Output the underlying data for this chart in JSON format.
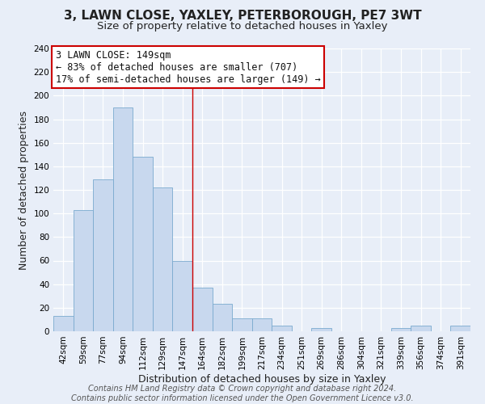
{
  "title": "3, LAWN CLOSE, YAXLEY, PETERBOROUGH, PE7 3WT",
  "subtitle": "Size of property relative to detached houses in Yaxley",
  "xlabel": "Distribution of detached houses by size in Yaxley",
  "ylabel": "Number of detached properties",
  "bar_labels": [
    "42sqm",
    "59sqm",
    "77sqm",
    "94sqm",
    "112sqm",
    "129sqm",
    "147sqm",
    "164sqm",
    "182sqm",
    "199sqm",
    "217sqm",
    "234sqm",
    "251sqm",
    "269sqm",
    "286sqm",
    "304sqm",
    "321sqm",
    "339sqm",
    "356sqm",
    "374sqm",
    "391sqm"
  ],
  "bar_values": [
    13,
    103,
    129,
    190,
    148,
    122,
    60,
    37,
    23,
    11,
    11,
    5,
    0,
    3,
    0,
    0,
    0,
    3,
    5,
    0,
    5
  ],
  "bar_color": "#c8d8ee",
  "bar_edge_color": "#7aaacf",
  "highlight_index": 6,
  "highlight_line_color": "#cc0000",
  "ylim": [
    0,
    240
  ],
  "yticks": [
    0,
    20,
    40,
    60,
    80,
    100,
    120,
    140,
    160,
    180,
    200,
    220,
    240
  ],
  "annotation_box_text": "3 LAWN CLOSE: 149sqm\n← 83% of detached houses are smaller (707)\n17% of semi-detached houses are larger (149) →",
  "annotation_box_color": "#ffffff",
  "annotation_box_edge_color": "#cc0000",
  "footer_text": "Contains HM Land Registry data © Crown copyright and database right 2024.\nContains public sector information licensed under the Open Government Licence v3.0.",
  "bg_color": "#e8eef8",
  "plot_bg_color": "#e8eef8",
  "grid_color": "#ffffff",
  "title_fontsize": 11,
  "subtitle_fontsize": 9.5,
  "axis_label_fontsize": 9,
  "tick_fontsize": 7.5,
  "footer_fontsize": 7,
  "annotation_fontsize": 8.5
}
